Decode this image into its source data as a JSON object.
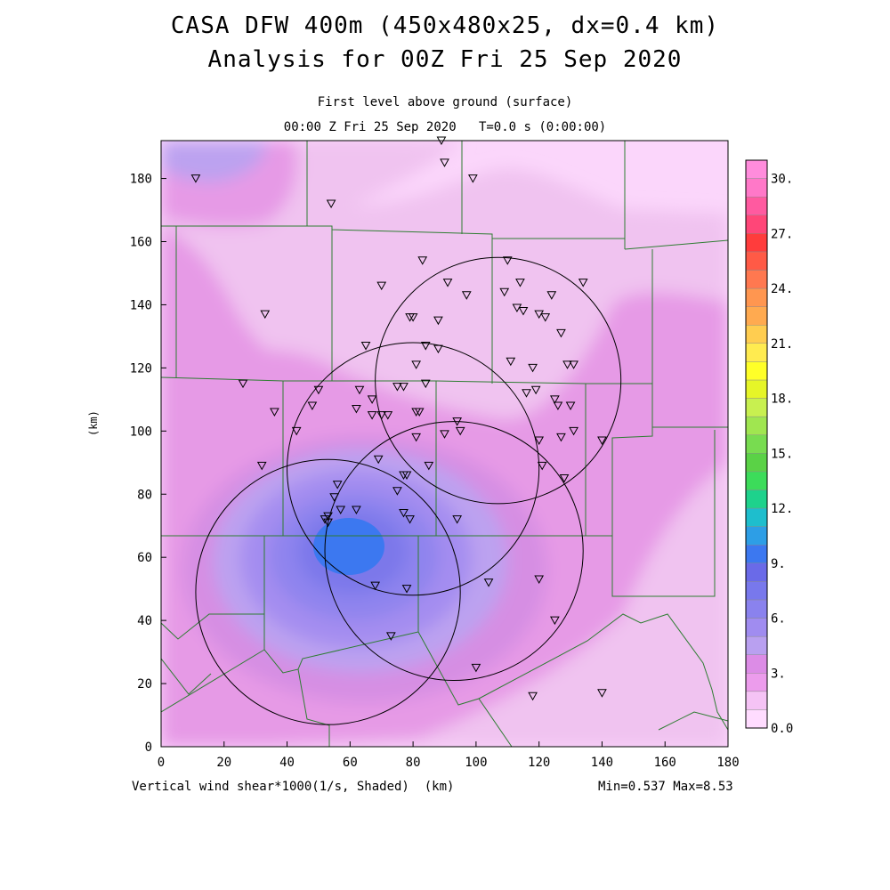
{
  "title": {
    "line1": "CASA DFW 400m (450x480x25, dx=0.4 km)",
    "line2": "Analysis for 00Z Fri 25 Sep 2020"
  },
  "subtitle": {
    "level": "First level above ground (surface)",
    "time": "00:00 Z Fri 25 Sep 2020",
    "t_value": "T=0.0 s (0:00:00)"
  },
  "axes": {
    "xlabel": "(km)",
    "ylabel": "(km)",
    "x_ticks": [
      "0",
      "20",
      "40",
      "60",
      "80",
      "100",
      "120",
      "140",
      "160",
      "180"
    ],
    "y_ticks": [
      "0",
      "20",
      "40",
      "60",
      "80",
      "100",
      "120",
      "140",
      "160",
      "180"
    ],
    "xlim": [
      0,
      180
    ],
    "ylim": [
      0,
      192
    ]
  },
  "footer": {
    "variable": "Vertical wind shear*1000(1/s, Shaded)",
    "units": "(km)",
    "minmax": "Min=0.537 Max=8.53"
  },
  "colorbar": {
    "labels": [
      "0.0",
      "3.",
      "6.",
      "9.",
      "12.",
      "15.",
      "18.",
      "21.",
      "24.",
      "27.",
      "30."
    ],
    "colors": [
      "#ffdcff",
      "#f5c3f5",
      "#ec9cec",
      "#dc8ce6",
      "#b9a0f0",
      "#a08cf0",
      "#8a82ee",
      "#7878ec",
      "#6a6ae8",
      "#3c78f0",
      "#2d9ee6",
      "#1ebecd",
      "#1ed28c",
      "#3cdc5a",
      "#5ad246",
      "#78dc50",
      "#a0e650",
      "#c8f050",
      "#e6f528",
      "#ffff28",
      "#ffeb50",
      "#ffcd50",
      "#ffaa50",
      "#ff9650",
      "#ff7850",
      "#ff5a46",
      "#ff3c3c",
      "#ff4678",
      "#ff5aa0",
      "#ff78c8",
      "#ff8cdc"
    ]
  },
  "shading": {
    "colors": {
      "level0": "#fbd6fb",
      "level1": "#f0c3f0",
      "level2": "#e69ae6",
      "level3": "#d68ee3",
      "level4": "#bca2f0",
      "level5": "#a48df0",
      "level6": "#8f84ee",
      "level7": "#7c78ea",
      "level8": "#3c78f0"
    }
  },
  "chart_data": {
    "type": "map",
    "xlim": [
      0,
      180
    ],
    "ylim": [
      0,
      192
    ],
    "min": 0.537,
    "max": 8.53,
    "radar_rings": [
      {
        "cx": 53,
        "cy": 49,
        "r": 42
      },
      {
        "cx": 80,
        "cy": 88,
        "r": 40
      },
      {
        "cx": 93,
        "cy": 62,
        "r": 41
      },
      {
        "cx": 107,
        "cy": 116,
        "r": 39
      }
    ],
    "stations": [
      [
        11,
        180
      ],
      [
        54,
        172
      ],
      [
        89,
        192
      ],
      [
        90,
        185
      ],
      [
        99,
        180
      ],
      [
        83,
        154
      ],
      [
        70,
        146
      ],
      [
        91,
        147
      ],
      [
        97,
        143
      ],
      [
        110,
        154
      ],
      [
        114,
        147
      ],
      [
        109,
        144
      ],
      [
        124,
        143
      ],
      [
        134,
        147
      ],
      [
        33,
        137
      ],
      [
        79,
        136
      ],
      [
        80,
        136
      ],
      [
        88,
        135
      ],
      [
        113,
        139
      ],
      [
        115,
        138
      ],
      [
        120,
        137
      ],
      [
        122,
        136
      ],
      [
        127,
        131
      ],
      [
        65,
        127
      ],
      [
        84,
        127
      ],
      [
        88,
        126
      ],
      [
        81,
        121
      ],
      [
        111,
        122
      ],
      [
        118,
        120
      ],
      [
        129,
        121
      ],
      [
        131,
        121
      ],
      [
        26,
        115
      ],
      [
        50,
        113
      ],
      [
        63,
        113
      ],
      [
        67,
        110
      ],
      [
        75,
        114
      ],
      [
        77,
        114
      ],
      [
        84,
        115
      ],
      [
        116,
        112
      ],
      [
        119,
        113
      ],
      [
        125,
        110
      ],
      [
        126,
        108
      ],
      [
        130,
        108
      ],
      [
        36,
        106
      ],
      [
        48,
        108
      ],
      [
        62,
        107
      ],
      [
        67,
        105
      ],
      [
        70,
        105
      ],
      [
        72,
        105
      ],
      [
        81,
        106
      ],
      [
        82,
        106
      ],
      [
        43,
        100
      ],
      [
        94,
        103
      ],
      [
        95,
        100
      ],
      [
        90,
        99
      ],
      [
        81,
        98
      ],
      [
        127,
        98
      ],
      [
        120,
        97
      ],
      [
        131,
        100
      ],
      [
        140,
        97
      ],
      [
        32,
        89
      ],
      [
        69,
        91
      ],
      [
        77,
        86
      ],
      [
        78,
        86
      ],
      [
        85,
        89
      ],
      [
        121,
        89
      ],
      [
        128,
        85
      ],
      [
        56,
        83
      ],
      [
        55,
        79
      ],
      [
        53,
        73
      ],
      [
        52,
        72
      ],
      [
        53,
        71
      ],
      [
        57,
        75
      ],
      [
        62,
        75
      ],
      [
        75,
        81
      ],
      [
        77,
        74
      ],
      [
        79,
        72
      ],
      [
        94,
        72
      ],
      [
        68,
        51
      ],
      [
        78,
        50
      ],
      [
        104,
        52
      ],
      [
        120,
        53
      ],
      [
        125,
        40
      ],
      [
        73,
        35
      ],
      [
        100,
        25
      ],
      [
        118,
        16
      ],
      [
        140,
        17
      ]
    ]
  }
}
